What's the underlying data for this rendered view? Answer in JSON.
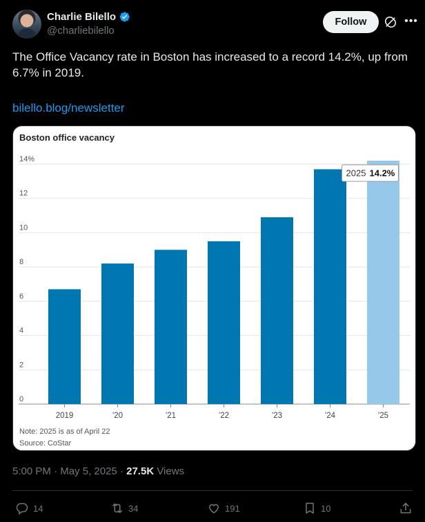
{
  "author": {
    "name": "Charlie Bilello",
    "handle": "@charliebilello"
  },
  "follow_label": "Follow",
  "tweet": {
    "text": "The Office Vacancy rate in Boston has increased to a record 14.2%, up from 6.7% in 2019.",
    "link": "bilello.blog/newsletter"
  },
  "chart_data": {
    "type": "bar",
    "title": "Boston office vacancy",
    "categories": [
      "2019",
      "'20",
      "'21",
      "'22",
      "'23",
      "'24",
      "'25"
    ],
    "values": [
      6.7,
      8.2,
      9.0,
      9.5,
      10.9,
      13.7,
      14.2
    ],
    "y_ticks": [
      "0",
      "2",
      "4",
      "6",
      "8",
      "10",
      "12",
      "14%"
    ],
    "ylim": [
      0,
      14
    ],
    "grid": true,
    "highlight": {
      "index": 6,
      "year_label": "2025",
      "value_label": "14.2%"
    },
    "note": "Note: 2025 is as of April 22",
    "source": "Source: CoStar",
    "colors": {
      "bar": "#0077b0",
      "highlight": "#96c8ea"
    }
  },
  "meta": {
    "time": "5:00 PM",
    "date": "May 5, 2025",
    "separator": "·",
    "views_count": "27.5K",
    "views_label": "Views"
  },
  "actions": {
    "replies": "14",
    "reposts": "34",
    "likes": "191",
    "bookmarks": "10"
  }
}
